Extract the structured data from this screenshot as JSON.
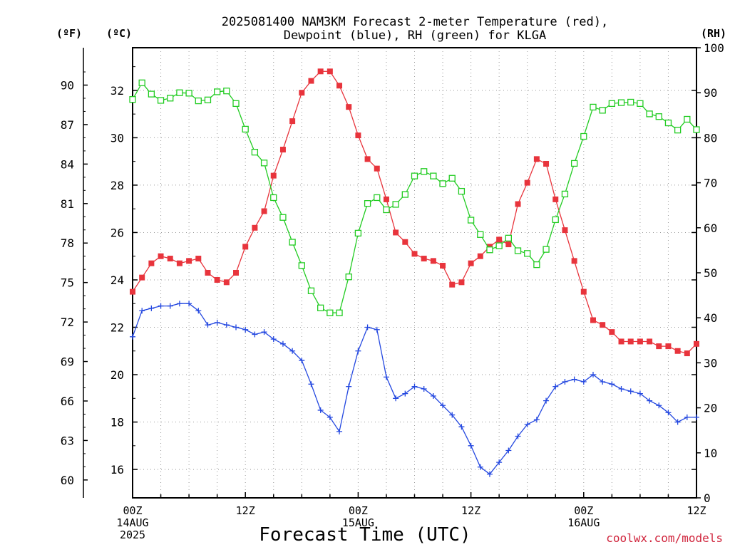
{
  "chart_data": {
    "type": "line",
    "title_line1": "2025081400 NAM3KM Forecast 2-meter Temperature (red),",
    "title_line2": "Dewpoint (blue), RH (green) for KLGA",
    "xlabel": "Forecast Time (UTC)",
    "credit": "coolwx.com/models",
    "units": {
      "f": "(ºF)",
      "c": "(ºC)",
      "rh": "(RH)"
    },
    "xlim": [
      0,
      60
    ],
    "x_unit": "hours after 2025-08-14 00Z",
    "x_ticks": [
      {
        "x": 0,
        "lines": [
          "00Z",
          "14AUG",
          "2025"
        ]
      },
      {
        "x": 12,
        "lines": [
          "12Z"
        ]
      },
      {
        "x": 24,
        "lines": [
          "00Z",
          "15AUG"
        ]
      },
      {
        "x": 36,
        "lines": [
          "12Z"
        ]
      },
      {
        "x": 48,
        "lines": [
          "00Z",
          "16AUG"
        ]
      },
      {
        "x": 60,
        "lines": [
          "12Z"
        ]
      }
    ],
    "ylim_c": [
      14.8,
      33.8
    ],
    "yticks_c": [
      "16",
      "18",
      "20",
      "22",
      "24",
      "26",
      "28",
      "30",
      "32"
    ],
    "yticks_f": [
      "60",
      "63",
      "66",
      "69",
      "72",
      "75",
      "78",
      "81",
      "84",
      "87",
      "90"
    ],
    "ylim_rh": [
      0,
      100
    ],
    "yticks_rh": [
      "0",
      "10",
      "20",
      "30",
      "40",
      "50",
      "60",
      "70",
      "80",
      "90",
      "100"
    ],
    "grid": true,
    "colors": {
      "temperature": "#e8343c",
      "dewpoint": "#2448e0",
      "rh": "#22cc22"
    },
    "series": [
      {
        "name": "Temperature",
        "axis": "c",
        "marker": "filled-square",
        "values": [
          23.5,
          24.1,
          24.7,
          25.0,
          24.9,
          24.7,
          24.8,
          24.9,
          24.3,
          24.0,
          23.9,
          24.3,
          25.4,
          26.2,
          26.9,
          28.4,
          29.5,
          30.7,
          31.9,
          32.4,
          32.8,
          32.8,
          32.2,
          31.3,
          30.1,
          29.1,
          28.7,
          27.4,
          26.0,
          25.6,
          25.1,
          24.9,
          24.8,
          24.6,
          23.8,
          23.9,
          24.7,
          25.0,
          25.4,
          25.7,
          25.5,
          27.2,
          28.1,
          29.1,
          28.9,
          27.4,
          26.1,
          24.8,
          23.5,
          22.3,
          22.1,
          21.8,
          21.4,
          21.4,
          21.4,
          21.4,
          21.2,
          21.2,
          21.0,
          20.9,
          21.3
        ]
      },
      {
        "name": "Dewpoint",
        "axis": "c",
        "marker": "plus",
        "values": [
          21.6,
          22.7,
          22.8,
          22.9,
          22.9,
          23.0,
          23.0,
          22.7,
          22.1,
          22.2,
          22.1,
          22.0,
          21.9,
          21.7,
          21.8,
          21.5,
          21.3,
          21.0,
          20.6,
          19.6,
          18.5,
          18.2,
          17.6,
          19.5,
          21.0,
          22.0,
          21.9,
          19.9,
          19.0,
          19.2,
          19.5,
          19.4,
          19.1,
          18.7,
          18.3,
          17.8,
          17.0,
          16.1,
          15.8,
          16.3,
          16.8,
          17.4,
          17.9,
          18.1,
          18.9,
          19.5,
          19.7,
          19.8,
          19.7,
          20.0,
          19.7,
          19.6,
          19.4,
          19.3,
          19.2,
          18.9,
          18.7,
          18.4,
          18.0,
          18.2,
          18.2
        ]
      },
      {
        "name": "RH",
        "axis": "rh",
        "marker": "open-square",
        "values": [
          88.5,
          92.2,
          89.7,
          88.3,
          88.8,
          90.0,
          89.9,
          88.2,
          88.4,
          90.2,
          90.4,
          87.6,
          81.9,
          76.8,
          74.4,
          66.7,
          62.3,
          56.8,
          51.6,
          46.0,
          42.2,
          41.1,
          41.1,
          49.1,
          58.8,
          65.4,
          66.7,
          64.0,
          65.2,
          67.4,
          71.5,
          72.5,
          71.5,
          69.8,
          71.0,
          68.1,
          61.7,
          58.5,
          55.1,
          56.0,
          57.7,
          54.9,
          54.3,
          51.8,
          55.2,
          61.8,
          67.5,
          74.3,
          80.3,
          86.8,
          86.1,
          87.6,
          87.8,
          87.9,
          87.6,
          85.3,
          84.7,
          83.3,
          81.7,
          84.1,
          81.8
        ]
      }
    ]
  }
}
